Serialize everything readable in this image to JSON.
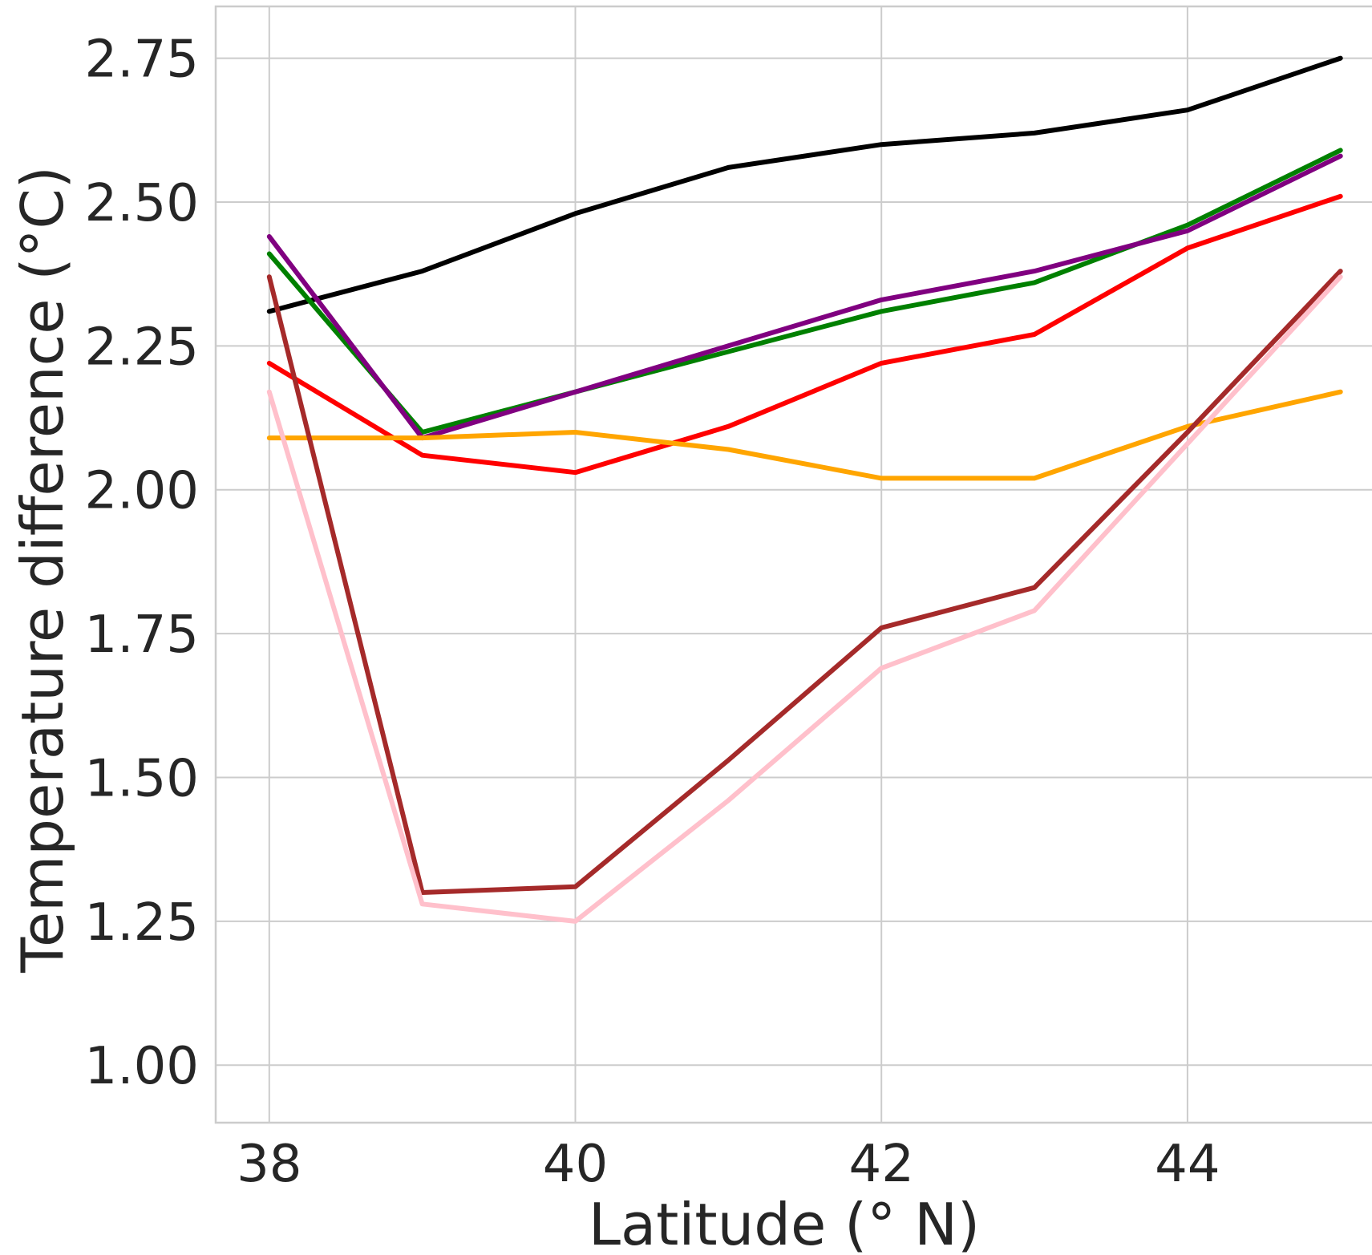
{
  "chart_data": {
    "type": "line",
    "title": "",
    "xlabel": "Latitude (° N)",
    "ylabel": "Temperature difference (°C)",
    "xlim": [
      37.65,
      45.3
    ],
    "ylim": [
      0.9,
      2.84
    ],
    "x_ticks": [
      38,
      40,
      42,
      44
    ],
    "x_tick_labels": [
      "38",
      "40",
      "42",
      "44"
    ],
    "y_ticks": [
      1.0,
      1.25,
      1.5,
      1.75,
      2.0,
      2.25,
      2.5,
      2.75
    ],
    "y_tick_labels": [
      "1.00",
      "1.25",
      "1.50",
      "1.75",
      "2.00",
      "2.25",
      "2.50",
      "2.75"
    ],
    "grid": true,
    "legend": "none",
    "x": [
      38,
      39,
      40,
      41,
      42,
      43,
      44,
      45
    ],
    "series": [
      {
        "color": "#000000",
        "values": [
          2.31,
          2.38,
          2.48,
          2.56,
          2.6,
          2.62,
          2.66,
          2.75
        ]
      },
      {
        "color": "#008000",
        "values": [
          2.41,
          2.1,
          2.17,
          2.24,
          2.31,
          2.36,
          2.46,
          2.59
        ]
      },
      {
        "color": "#800080",
        "values": [
          2.44,
          2.09,
          2.17,
          2.25,
          2.33,
          2.38,
          2.45,
          2.58
        ]
      },
      {
        "color": "#ff0000",
        "values": [
          2.22,
          2.06,
          2.03,
          2.11,
          2.22,
          2.27,
          2.42,
          2.51
        ]
      },
      {
        "color": "#ffa500",
        "values": [
          2.09,
          2.09,
          2.1,
          2.07,
          2.02,
          2.02,
          2.11,
          2.17
        ]
      },
      {
        "color": "#a52a2a",
        "values": [
          2.37,
          1.3,
          1.31,
          1.53,
          1.76,
          1.83,
          2.1,
          2.38
        ]
      },
      {
        "color": "#ffc0cb",
        "values": [
          2.17,
          1.28,
          1.25,
          1.46,
          1.69,
          1.79,
          2.08,
          2.37
        ]
      }
    ]
  }
}
